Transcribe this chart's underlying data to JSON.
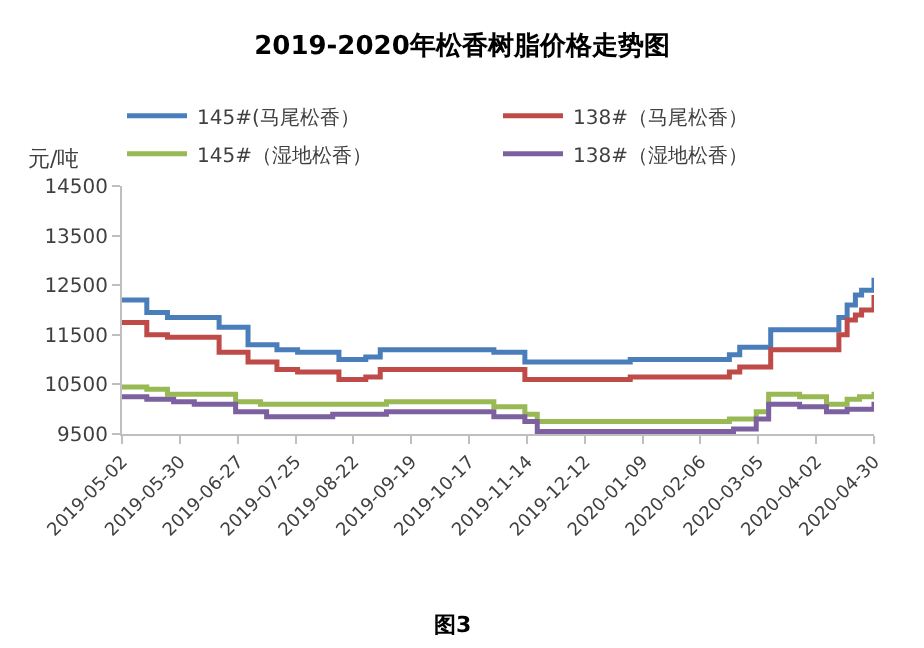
{
  "chart_data": {
    "type": "step",
    "title": "2019-2020年松香树脂价格走势图",
    "ylabel": "元/吨",
    "annotations": [
      "图3"
    ],
    "ylim": [
      9500,
      14500
    ],
    "yticks": [
      9500,
      10500,
      11500,
      12500,
      13500,
      14500
    ],
    "xlim": [
      "2019-05-02",
      "2020-04-30"
    ],
    "xticks": [
      "2019-05-02",
      "2019-05-30",
      "2019-06-27",
      "2019-07-25",
      "2019-08-22",
      "2019-09-19",
      "2019-10-17",
      "2019-11-14",
      "2019-12-12",
      "2020-01-09",
      "2020-02-06",
      "2020-03-05",
      "2020-04-02",
      "2020-04-30"
    ],
    "grid": false,
    "legend": "top",
    "marker": "none",
    "line_style": "solid",
    "series": [
      {
        "name": "145#(马尾松香）",
        "color": "#4a7ebb",
        "x": [
          "2019-05-02",
          "2019-05-14",
          "2019-05-24",
          "2019-06-18",
          "2019-07-02",
          "2019-07-16",
          "2019-07-26",
          "2019-08-15",
          "2019-08-28",
          "2019-09-04",
          "2019-10-29",
          "2019-11-13",
          "2020-01-03",
          "2020-02-20",
          "2020-02-25",
          "2020-03-11",
          "2020-04-13",
          "2020-04-17",
          "2020-04-21",
          "2020-04-24",
          "2020-04-30"
        ],
        "values": [
          12200,
          11950,
          11850,
          11650,
          11300,
          11200,
          11150,
          11000,
          11050,
          11200,
          11150,
          10950,
          11000,
          11100,
          11250,
          11600,
          11850,
          12100,
          12300,
          12400,
          12650
        ]
      },
      {
        "name": "138#（马尾松香）",
        "color": "#be4b48",
        "x": [
          "2019-05-02",
          "2019-05-14",
          "2019-05-24",
          "2019-06-18",
          "2019-07-02",
          "2019-07-16",
          "2019-07-26",
          "2019-08-15",
          "2019-08-28",
          "2019-09-04",
          "2019-11-13",
          "2020-01-03",
          "2020-02-20",
          "2020-02-25",
          "2020-03-11",
          "2020-04-13",
          "2020-04-17",
          "2020-04-21",
          "2020-04-24",
          "2020-04-30"
        ],
        "values": [
          11750,
          11500,
          11450,
          11150,
          10950,
          10800,
          10750,
          10600,
          10650,
          10800,
          10600,
          10650,
          10750,
          10850,
          11200,
          11500,
          11800,
          11900,
          12000,
          12300
        ]
      },
      {
        "name": "145#（湿地松香）",
        "color": "#98b954",
        "x": [
          "2019-05-02",
          "2019-05-14",
          "2019-05-24",
          "2019-06-26",
          "2019-07-08",
          "2019-09-07",
          "2019-10-29",
          "2019-11-13",
          "2019-11-19",
          "2020-02-20",
          "2020-03-04",
          "2020-03-10",
          "2020-03-25",
          "2020-04-07",
          "2020-04-17",
          "2020-04-23",
          "2020-04-30"
        ],
        "values": [
          10450,
          10400,
          10300,
          10150,
          10100,
          10150,
          10050,
          9900,
          9750,
          9800,
          9950,
          10300,
          10250,
          10100,
          10200,
          10250,
          10350
        ]
      },
      {
        "name": "138#（湿地松香）",
        "color": "#7d60a0",
        "x": [
          "2019-05-02",
          "2019-05-14",
          "2019-05-27",
          "2019-06-06",
          "2019-06-26",
          "2019-07-11",
          "2019-08-12",
          "2019-09-07",
          "2019-10-29",
          "2019-11-13",
          "2019-11-19",
          "2020-02-22",
          "2020-03-04",
          "2020-03-10",
          "2020-03-25",
          "2020-04-07",
          "2020-04-17",
          "2020-04-30"
        ],
        "values": [
          10250,
          10200,
          10150,
          10100,
          9950,
          9850,
          9900,
          9950,
          9850,
          9750,
          9550,
          9600,
          9800,
          10100,
          10050,
          9950,
          10000,
          10150
        ]
      }
    ]
  }
}
